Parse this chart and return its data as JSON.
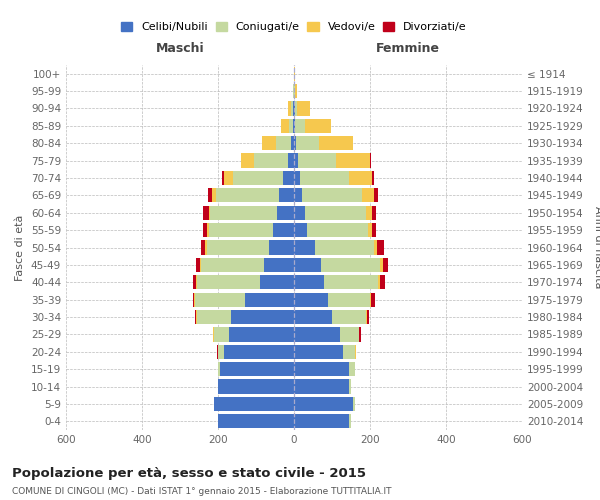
{
  "age_groups": [
    "0-4",
    "5-9",
    "10-14",
    "15-19",
    "20-24",
    "25-29",
    "30-34",
    "35-39",
    "40-44",
    "45-49",
    "50-54",
    "55-59",
    "60-64",
    "65-69",
    "70-74",
    "75-79",
    "80-84",
    "85-89",
    "90-94",
    "95-99",
    "100+"
  ],
  "birth_years": [
    "2010-2014",
    "2005-2009",
    "2000-2004",
    "1995-1999",
    "1990-1994",
    "1985-1989",
    "1980-1984",
    "1975-1979",
    "1970-1974",
    "1965-1969",
    "1960-1964",
    "1955-1959",
    "1950-1954",
    "1945-1949",
    "1940-1944",
    "1935-1939",
    "1930-1934",
    "1925-1929",
    "1920-1924",
    "1915-1919",
    "≤ 1914"
  ],
  "colors": {
    "celibi": "#4472C4",
    "coniugati": "#C5D9A0",
    "vedovi": "#F6C84E",
    "divorziati": "#C0001A"
  },
  "males": {
    "celibi": [
      200,
      210,
      200,
      195,
      185,
      170,
      165,
      130,
      90,
      80,
      65,
      55,
      45,
      40,
      30,
      15,
      8,
      3,
      2,
      1,
      0
    ],
    "coniugati": [
      0,
      0,
      0,
      5,
      15,
      40,
      90,
      130,
      165,
      165,
      165,
      170,
      175,
      165,
      130,
      90,
      40,
      10,
      5,
      1,
      0
    ],
    "vedovi": [
      0,
      0,
      0,
      1,
      1,
      2,
      2,
      2,
      3,
      3,
      5,
      5,
      5,
      12,
      25,
      35,
      35,
      20,
      8,
      1,
      0
    ],
    "divorziati": [
      0,
      0,
      0,
      0,
      1,
      2,
      3,
      5,
      8,
      10,
      10,
      10,
      15,
      10,
      5,
      0,
      0,
      0,
      0,
      0,
      0
    ]
  },
  "females": {
    "celibi": [
      145,
      155,
      145,
      145,
      130,
      120,
      100,
      90,
      80,
      70,
      55,
      35,
      30,
      20,
      15,
      10,
      5,
      3,
      2,
      1,
      0
    ],
    "coniugati": [
      5,
      5,
      5,
      15,
      30,
      50,
      90,
      110,
      140,
      155,
      155,
      160,
      160,
      160,
      130,
      100,
      60,
      25,
      5,
      2,
      0
    ],
    "vedovi": [
      0,
      0,
      0,
      1,
      2,
      2,
      3,
      3,
      5,
      8,
      8,
      10,
      15,
      30,
      60,
      90,
      90,
      70,
      35,
      5,
      2
    ],
    "divorziati": [
      0,
      0,
      0,
      0,
      2,
      3,
      5,
      10,
      15,
      15,
      20,
      12,
      12,
      10,
      5,
      2,
      0,
      0,
      0,
      0,
      0
    ]
  },
  "title": "Popolazione per età, sesso e stato civile - 2015",
  "subtitle": "COMUNE DI CINGOLI (MC) - Dati ISTAT 1° gennaio 2015 - Elaborazione TUTTITALIA.IT",
  "xlabel_left": "Maschi",
  "xlabel_right": "Femmine",
  "ylabel_left": "Fasce di età",
  "ylabel_right": "Anni di nascita",
  "xlim": 600,
  "background_color": "#ffffff",
  "grid_color": "#bbbbbb"
}
